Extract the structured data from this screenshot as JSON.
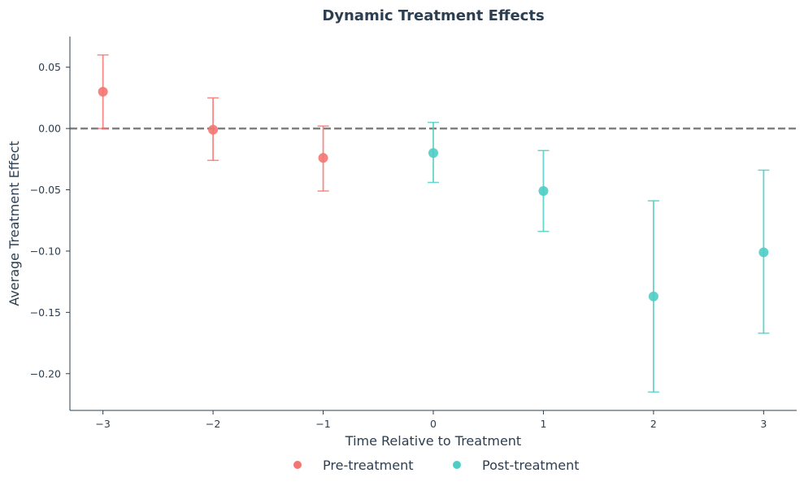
{
  "chart_data": {
    "type": "scatter",
    "title": "Dynamic Treatment Effects",
    "xlabel": "Time Relative to Treatment",
    "ylabel": "Average Treatment Effect",
    "xlim": [
      -3.3,
      3.3
    ],
    "ylim": [
      -0.23,
      0.075
    ],
    "x_ticks": [
      -3,
      -2,
      -1,
      0,
      1,
      2,
      3
    ],
    "x_tick_labels": [
      "−3",
      "−2",
      "−1",
      "0",
      "1",
      "2",
      "3"
    ],
    "y_ticks": [
      0.05,
      0.0,
      -0.05,
      -0.1,
      -0.15,
      -0.2
    ],
    "y_tick_labels": [
      "0.05",
      "0.00",
      "−0.05",
      "−0.10",
      "−0.15",
      "−0.20"
    ],
    "reference_line": {
      "y": 0,
      "style": "dashed",
      "color": "#808080"
    },
    "grid": false,
    "legend_placement": "bottom-center",
    "series": [
      {
        "name": "Pre-treatment",
        "color": "#f47572",
        "points": [
          {
            "x": -3,
            "y": 0.03,
            "lower": 0.0,
            "upper": 0.06
          },
          {
            "x": -2,
            "y": -0.001,
            "lower": -0.026,
            "upper": 0.025
          },
          {
            "x": -1,
            "y": -0.024,
            "lower": -0.051,
            "upper": 0.002
          }
        ]
      },
      {
        "name": "Post-treatment",
        "color": "#4ecdc4",
        "points": [
          {
            "x": 0,
            "y": -0.02,
            "lower": -0.044,
            "upper": 0.005
          },
          {
            "x": 1,
            "y": -0.051,
            "lower": -0.084,
            "upper": -0.018
          },
          {
            "x": 2,
            "y": -0.137,
            "lower": -0.215,
            "upper": -0.059
          },
          {
            "x": 3,
            "y": -0.101,
            "lower": -0.167,
            "upper": -0.034
          }
        ]
      }
    ]
  }
}
